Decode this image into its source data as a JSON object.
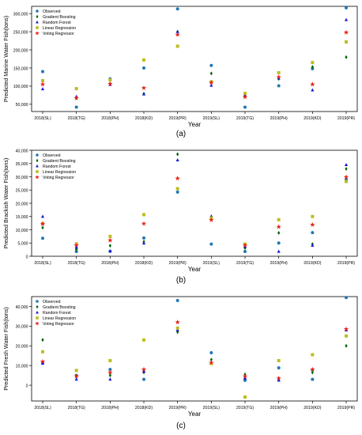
{
  "legend_labels": [
    "Observed",
    "Gradient Boosting",
    "Random Forest",
    "Linear Regression",
    "Voting Regressor"
  ],
  "series_colors": {
    "Observed": "#1f77b4",
    "Gradient Boosting": "#006400",
    "Random Forest": "#1a1ad6",
    "Linear Regression": "#bcbd22",
    "Voting Regressor": "#e8231a"
  },
  "series_markers": {
    "Observed": "circle",
    "Gradient Boosting": "diamond",
    "Random Forest": "triangle-up",
    "Linear Regression": "square",
    "Voting Regressor": "star"
  },
  "chart_data": [
    {
      "type": "scatter",
      "caption": "(a)",
      "xlabel": "Year",
      "ylabel": "Predicted Marine Water Fish(tons)",
      "categories": [
        "2018(SL)",
        "2018(TG)",
        "2018(PH)",
        "2018(KD)",
        "2019(PR)",
        "2019(SL)",
        "2019(TG)",
        "2019(PH)",
        "2019(KD)",
        "2019(PR)"
      ],
      "yticks": [
        50000,
        100000,
        150000,
        200000,
        250000,
        300000
      ],
      "ytick_labels": [
        "50,000",
        "100,000",
        "150,000",
        "200,000",
        "250,000",
        "300,000"
      ],
      "ylim": [
        30000,
        320000
      ],
      "legend": "top-left",
      "series": [
        {
          "name": "Observed",
          "values": [
            140000,
            42000,
            120000,
            150000,
            313000,
            157000,
            42000,
            101000,
            148000,
            316000
          ]
        },
        {
          "name": "Gradient Boosting",
          "values": [
            115000,
            67000,
            107000,
            79000,
            250000,
            135000,
            73000,
            120000,
            153000,
            180000
          ]
        },
        {
          "name": "Random Forest",
          "values": [
            92000,
            71000,
            104000,
            78000,
            250000,
            102000,
            75000,
            122000,
            89000,
            283000
          ]
        },
        {
          "name": "Linear Regression",
          "values": [
            115000,
            93000,
            117000,
            172000,
            210000,
            112000,
            80000,
            137000,
            165000,
            222000
          ]
        },
        {
          "name": "Voting Regressor",
          "values": [
            105000,
            67000,
            106000,
            95000,
            242000,
            110000,
            70000,
            125000,
            105000,
            248000
          ]
        }
      ]
    },
    {
      "type": "scatter",
      "caption": "(b)",
      "xlabel": "Year",
      "ylabel": "Predicted Brackish Water Fish(tons)",
      "categories": [
        "2018(SL)",
        "2018(TG)",
        "2018(PH)",
        "2018(KD)",
        "2019(PR)",
        "2019(SL)",
        "2019(TG)",
        "2019(PH)",
        "2019(KD)",
        "2019(PR)"
      ],
      "yticks": [
        0,
        5000,
        10000,
        15000,
        20000,
        25000,
        30000,
        35000,
        40000
      ],
      "ytick_labels": [
        "0",
        "5,000",
        "10,000",
        "15,000",
        "20,000",
        "25,000",
        "30,000",
        "35,000",
        "40,000"
      ],
      "ylim": [
        0,
        40000
      ],
      "legend": "top-left",
      "series": [
        {
          "name": "Observed",
          "values": [
            6800,
            1800,
            1900,
            6900,
            24200,
            4600,
            1800,
            5000,
            8900,
            29000
          ]
        },
        {
          "name": "Gradient Boosting",
          "values": [
            10800,
            2600,
            4000,
            5500,
            38500,
            14200,
            3100,
            8800,
            4600,
            33000
          ]
        },
        {
          "name": "Random Forest",
          "values": [
            15000,
            3300,
            1900,
            4900,
            36300,
            15100,
            3600,
            1800,
            4100,
            34500
          ]
        },
        {
          "name": "Linear Regression",
          "values": [
            12400,
            4700,
            7500,
            15700,
            25500,
            14400,
            4600,
            13800,
            15000,
            28200
          ]
        },
        {
          "name": "Voting Regressor",
          "values": [
            12200,
            4100,
            6000,
            12300,
            29400,
            13700,
            4100,
            11100,
            11900,
            29900
          ]
        }
      ]
    },
    {
      "type": "scatter",
      "caption": "(c)",
      "xlabel": "Year",
      "ylabel": "Predicted Fresh Water Fish(tons)",
      "categories": [
        "2018(SL)",
        "2018(TG)",
        "2018(PH)",
        "2018(KD)",
        "2019(PR)",
        "2019(SL)",
        "2019(TG)",
        "2019(PH)",
        "2019(KD)",
        "2019(PR)"
      ],
      "yticks": [
        0,
        10000,
        20000,
        30000,
        40000
      ],
      "ytick_labels": [
        "0",
        "10,000",
        "20,000",
        "30,000",
        "40,000"
      ],
      "ylim": [
        -8000,
        45000
      ],
      "legend": "top-left",
      "series": [
        {
          "name": "Observed",
          "values": [
            11500,
            5000,
            8000,
            3000,
            43000,
            16500,
            2500,
            8800,
            3000,
            44500
          ]
        },
        {
          "name": "Gradient Boosting",
          "values": [
            23000,
            4500,
            5000,
            6500,
            27000,
            13000,
            5500,
            3500,
            6500,
            20000
          ]
        },
        {
          "name": "Random Forest",
          "values": [
            11000,
            3000,
            3000,
            7000,
            28000,
            11000,
            3500,
            2500,
            8000,
            28000
          ]
        },
        {
          "name": "Linear Regression",
          "values": [
            17000,
            7500,
            12500,
            23000,
            29000,
            11000,
            -6000,
            12500,
            15500,
            25000
          ]
        },
        {
          "name": "Voting Regressor",
          "values": [
            12000,
            4500,
            6500,
            8000,
            32000,
            11500,
            4500,
            3500,
            8000,
            28500
          ]
        }
      ]
    }
  ]
}
